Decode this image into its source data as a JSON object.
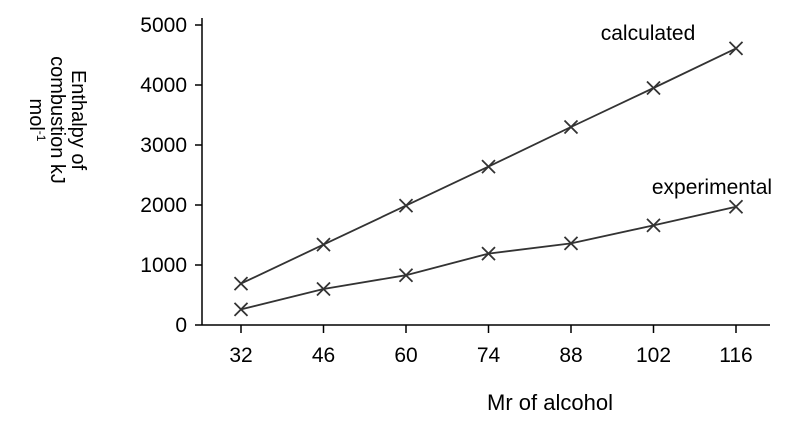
{
  "chart_data": {
    "type": "line",
    "xlabel": "Mr of alcohol",
    "ylabel": {
      "line1": "Enthalpy of",
      "line2": "combustion kJ",
      "line3_base": "mol",
      "line3_sup": "-1"
    },
    "categories": [
      "32",
      "46",
      "60",
      "74",
      "88",
      "102",
      "116"
    ],
    "x": [
      32,
      46,
      60,
      74,
      88,
      102,
      116
    ],
    "ylim": [
      0,
      5000
    ],
    "yticks": [
      0,
      1000,
      2000,
      3000,
      4000,
      5000
    ],
    "grid": false,
    "marker": "x",
    "series": [
      {
        "name": "calculated",
        "values": [
          690,
          1340,
          1990,
          2640,
          3300,
          3950,
          4610
        ]
      },
      {
        "name": "experimental",
        "values": [
          260,
          600,
          830,
          1190,
          1360,
          1660,
          1970
        ]
      }
    ]
  }
}
